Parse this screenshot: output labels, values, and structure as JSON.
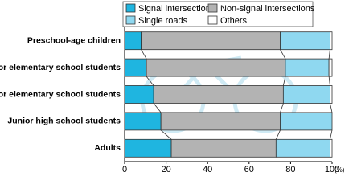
{
  "chart_data": {
    "type": "stacked-bar-horizontal",
    "categories": [
      "Preschool-age children",
      "Junior elementary school students",
      "Senior elementary school students",
      "Junior high school students",
      "Adults"
    ],
    "series": [
      {
        "name": "Signal intersections",
        "color": "#1fb5e0",
        "values": [
          8,
          10.5,
          14,
          17.5,
          22.5
        ]
      },
      {
        "name": "Non-signal intersections",
        "color": "#b3b3b3",
        "values": [
          67,
          67,
          62.5,
          57.5,
          50.5
        ]
      },
      {
        "name": "Single roads",
        "color": "#8fd8f0",
        "values": [
          24,
          21,
          22.5,
          25,
          26
        ]
      },
      {
        "name": "Others",
        "color": "#ffffff",
        "values": [
          1,
          1.5,
          1,
          0,
          1
        ]
      }
    ],
    "x_label": "(%)",
    "xlim": [
      0,
      100
    ],
    "xticks": [
      0,
      20,
      40,
      60,
      80,
      100
    ]
  }
}
